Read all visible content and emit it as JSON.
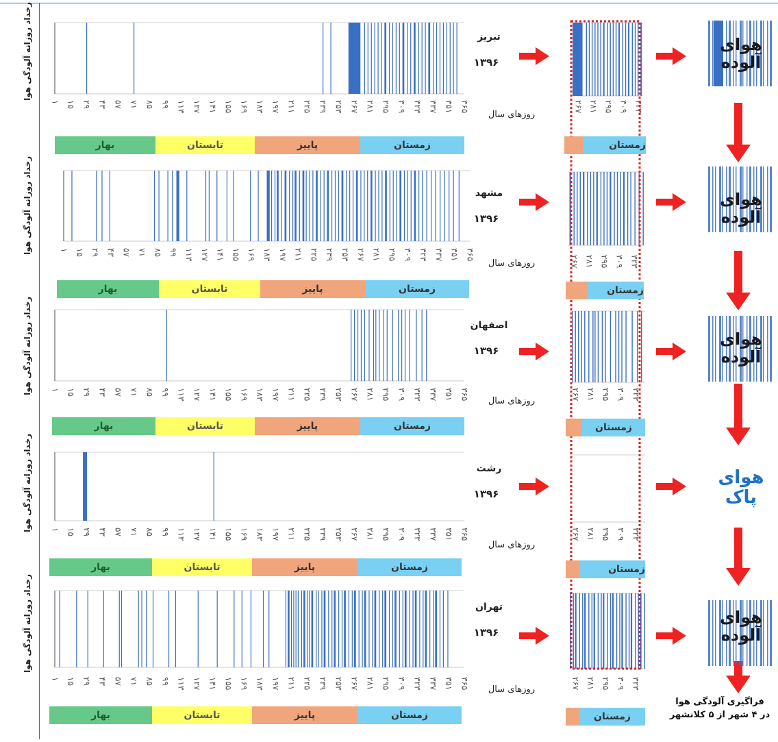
{
  "colors": {
    "bar": "#3a6fc4",
    "spring": "#66c98a",
    "summer": "#ffff66",
    "autumn": "#f0a57c",
    "winter": "#7ad0f2",
    "arrow": "#ee2222",
    "dash": "#dd2222",
    "clean_text": "#1f73c4",
    "polluted_text": "#1a1a1a"
  },
  "common": {
    "x_axis_title": "روزهای سال",
    "y_axis_title": "رخداد روزانه آلودگی هوا",
    "tick_labels": [
      "۱",
      "۱۵",
      "۲۹",
      "۴۳",
      "۵۷",
      "۷۱",
      "۸۵",
      "۹۹",
      "۱۱۳",
      "۱۲۷",
      "۱۴۱",
      "۱۵۵",
      "۱۶۹",
      "۱۸۳",
      "۱۹۷",
      "۲۱۱",
      "۲۲۵",
      "۲۳۹",
      "۲۵۳",
      "۲۶۷",
      "۲۸۱",
      "۲۹۵",
      "۳۰۹",
      "۳۲۳",
      "۳۳۷",
      "۳۵۱",
      "۳۶۵"
    ],
    "zoom_tick_labels": [
      "۲۶۷",
      "۲۸۱",
      "۲۹۵",
      "۳۰۹",
      "۳۲۳"
    ],
    "seasons": {
      "spring": "بهار",
      "summer": "تابستان",
      "autumn": "پاییز",
      "winter": "زمستان"
    }
  },
  "chart_data": [
    {
      "type": "bar",
      "city": "تبریز",
      "year": "۱۳۹۶",
      "xlabel": "روزهای سال",
      "ylabel": "رخداد روزانه آلودگی هوا",
      "xlim": [
        1,
        365
      ],
      "polluted_day_ranges": [
        [
          29,
          30
        ],
        [
          71,
          72
        ],
        [
          239,
          240
        ],
        [
          246,
          247
        ],
        [
          262,
          273
        ],
        [
          276,
          277
        ],
        [
          279,
          280
        ],
        [
          282,
          283
        ],
        [
          285,
          286
        ],
        [
          288,
          289
        ],
        [
          291,
          292
        ],
        [
          294,
          296
        ],
        [
          298,
          299
        ],
        [
          301,
          302
        ],
        [
          304,
          305
        ],
        [
          307,
          308
        ],
        [
          310,
          312
        ],
        [
          314,
          315
        ],
        [
          317,
          318
        ],
        [
          320,
          322
        ],
        [
          324,
          325
        ],
        [
          327,
          328
        ],
        [
          330,
          331
        ],
        [
          333,
          335
        ],
        [
          337,
          338
        ],
        [
          340,
          341
        ],
        [
          343,
          344
        ],
        [
          346,
          347
        ],
        [
          349,
          350
        ],
        [
          352,
          353
        ],
        [
          355,
          356
        ],
        [
          358,
          359
        ]
      ],
      "status": [
        "هوای",
        "آلوده"
      ]
    },
    {
      "type": "bar",
      "city": "مشهد",
      "year": "۱۳۹۶",
      "xlabel": "روزهای سال",
      "ylabel": "رخداد روزانه آلودگی هوا",
      "xlim": [
        1,
        365
      ],
      "polluted_day_ranges": [
        [
          8,
          9
        ],
        [
          30,
          31
        ],
        [
          35,
          36
        ],
        [
          42,
          43
        ],
        [
          82,
          83
        ],
        [
          86,
          87
        ],
        [
          94,
          95
        ],
        [
          98,
          99
        ],
        [
          102,
          105
        ],
        [
          111,
          112
        ],
        [
          128,
          129
        ],
        [
          131,
          132
        ],
        [
          138,
          139
        ],
        [
          147,
          148
        ],
        [
          153,
          154
        ],
        [
          168,
          169
        ],
        [
          175,
          176
        ],
        [
          183,
          186
        ],
        [
          187,
          188
        ],
        [
          190,
          191
        ],
        [
          192,
          194
        ],
        [
          196,
          197
        ],
        [
          199,
          201
        ],
        [
          203,
          204
        ],
        [
          206,
          207
        ],
        [
          208,
          210
        ],
        [
          212,
          213
        ],
        [
          215,
          217
        ],
        [
          218,
          219
        ],
        [
          221,
          222
        ],
        [
          224,
          225
        ],
        [
          227,
          229
        ],
        [
          231,
          232
        ],
        [
          234,
          235
        ],
        [
          237,
          239
        ],
        [
          241,
          242
        ],
        [
          244,
          245
        ],
        [
          247,
          248
        ],
        [
          250,
          252
        ],
        [
          254,
          255
        ],
        [
          257,
          258
        ],
        [
          260,
          261
        ],
        [
          263,
          265
        ],
        [
          267,
          268
        ],
        [
          270,
          271
        ],
        [
          273,
          274
        ],
        [
          276,
          278
        ],
        [
          280,
          281
        ],
        [
          283,
          284
        ],
        [
          286,
          287
        ],
        [
          289,
          291
        ],
        [
          293,
          294
        ],
        [
          296,
          297
        ],
        [
          299,
          300
        ],
        [
          302,
          304
        ],
        [
          306,
          307
        ],
        [
          309,
          310
        ],
        [
          312,
          313
        ],
        [
          315,
          317
        ],
        [
          319,
          320
        ],
        [
          322,
          323
        ],
        [
          326,
          327
        ],
        [
          330,
          331
        ],
        [
          334,
          335
        ],
        [
          338,
          339
        ],
        [
          342,
          343
        ],
        [
          346,
          347
        ],
        [
          350,
          351
        ],
        [
          355,
          356
        ]
      ],
      "status": [
        "هوای",
        "آلوده"
      ]
    },
    {
      "type": "bar",
      "city": "اصفهان",
      "year": "۱۳۹۶",
      "xlabel": "روزهای سال",
      "ylabel": "رخداد روزانه آلودگی هوا",
      "xlim": [
        1,
        365
      ],
      "polluted_day_ranges": [
        [
          100,
          101
        ],
        [
          264,
          265
        ],
        [
          267,
          268
        ],
        [
          270,
          271
        ],
        [
          273,
          274
        ],
        [
          276,
          277
        ],
        [
          280,
          281
        ],
        [
          284,
          285
        ],
        [
          286,
          287
        ],
        [
          289,
          290
        ],
        [
          293,
          294
        ],
        [
          296,
          297
        ],
        [
          301,
          302
        ],
        [
          306,
          307
        ],
        [
          309,
          310
        ],
        [
          312,
          313
        ],
        [
          316,
          317
        ],
        [
          322,
          323
        ],
        [
          327,
          328
        ],
        [
          331,
          332
        ]
      ],
      "status": [
        "هوای",
        "آلوده"
      ]
    },
    {
      "type": "bar",
      "city": "رشت",
      "year": "۱۳۹۶",
      "xlabel": "روزهای سال",
      "ylabel": "رخداد روزانه آلودگی هوا",
      "xlim": [
        1,
        365
      ],
      "polluted_day_ranges": [
        [
          26,
          30
        ],
        [
          142,
          143
        ]
      ],
      "status": [
        "هوای",
        "پاک"
      ]
    },
    {
      "type": "bar",
      "city": "تهران",
      "year": "۱۳۹۶",
      "xlabel": "روزهای سال",
      "ylabel": "رخداد روزانه آلودگی هوا",
      "xlim": [
        1,
        365
      ],
      "polluted_day_ranges": [
        [
          5,
          6
        ],
        [
          20,
          21
        ],
        [
          30,
          31
        ],
        [
          44,
          45
        ],
        [
          58,
          59
        ],
        [
          60,
          61
        ],
        [
          75,
          76
        ],
        [
          78,
          79
        ],
        [
          82,
          83
        ],
        [
          88,
          89
        ],
        [
          102,
          103
        ],
        [
          108,
          109
        ],
        [
          128,
          129
        ],
        [
          145,
          146
        ],
        [
          160,
          161
        ],
        [
          167,
          168
        ],
        [
          175,
          176
        ],
        [
          186,
          187
        ],
        [
          191,
          192
        ],
        [
          206,
          207
        ],
        [
          208,
          210
        ],
        [
          211,
          212
        ],
        [
          213,
          214
        ],
        [
          215,
          216
        ],
        [
          217,
          218
        ],
        [
          220,
          221
        ],
        [
          222,
          224
        ],
        [
          225,
          226
        ],
        [
          227,
          228
        ],
        [
          229,
          231
        ],
        [
          233,
          234
        ],
        [
          235,
          236
        ],
        [
          238,
          239
        ],
        [
          240,
          242
        ],
        [
          244,
          245
        ],
        [
          247,
          248
        ],
        [
          249,
          251
        ],
        [
          253,
          254
        ],
        [
          256,
          257
        ],
        [
          258,
          260
        ],
        [
          262,
          263
        ],
        [
          265,
          266
        ],
        [
          267,
          269
        ],
        [
          271,
          272
        ],
        [
          274,
          275
        ],
        [
          276,
          278
        ],
        [
          280,
          281
        ],
        [
          283,
          284
        ],
        [
          285,
          287
        ],
        [
          289,
          290
        ],
        [
          292,
          293
        ],
        [
          294,
          296
        ],
        [
          298,
          299
        ],
        [
          301,
          302
        ],
        [
          303,
          305
        ],
        [
          307,
          308
        ],
        [
          310,
          311
        ],
        [
          312,
          314
        ],
        [
          316,
          317
        ],
        [
          319,
          320
        ],
        [
          321,
          323
        ],
        [
          325,
          326
        ],
        [
          328,
          329
        ],
        [
          330,
          332
        ],
        [
          334,
          335
        ],
        [
          337,
          338
        ],
        [
          339,
          341
        ],
        [
          343,
          344
        ],
        [
          346,
          347
        ],
        [
          350,
          351
        ]
      ],
      "status": [
        "هوای",
        "آلوده"
      ]
    }
  ],
  "caption": [
    "فراگیری آلودگی هوا",
    "در ۴ شهر از ۵ کلانشهر"
  ]
}
